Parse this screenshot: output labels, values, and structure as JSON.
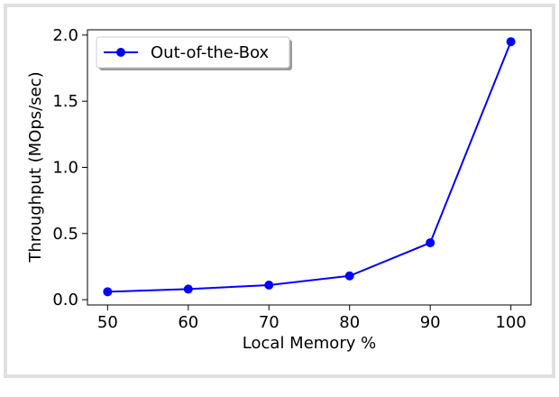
{
  "chart_data": {
    "type": "line",
    "title": "",
    "xlabel": "Local Memory %",
    "ylabel": "Throughput (MOps/sec)",
    "xlim": [
      47.5,
      102.5
    ],
    "ylim": [
      -0.04,
      2.04
    ],
    "xticks": [
      50,
      60,
      70,
      80,
      90,
      100
    ],
    "yticks": [
      0.0,
      0.5,
      1.0,
      1.5,
      2.0
    ],
    "xtick_labels": [
      "50",
      "60",
      "70",
      "80",
      "90",
      "100"
    ],
    "ytick_labels": [
      "0.0",
      "0.5",
      "1.0",
      "1.5",
      "2.0"
    ],
    "grid": false,
    "legend_position": "upper-left",
    "series": [
      {
        "name": "Out-of-the-Box",
        "color": "#0000ff",
        "marker": "circle",
        "x": [
          50,
          60,
          70,
          80,
          90,
          100
        ],
        "y": [
          0.06,
          0.08,
          0.11,
          0.18,
          0.43,
          1.95
        ]
      }
    ]
  }
}
